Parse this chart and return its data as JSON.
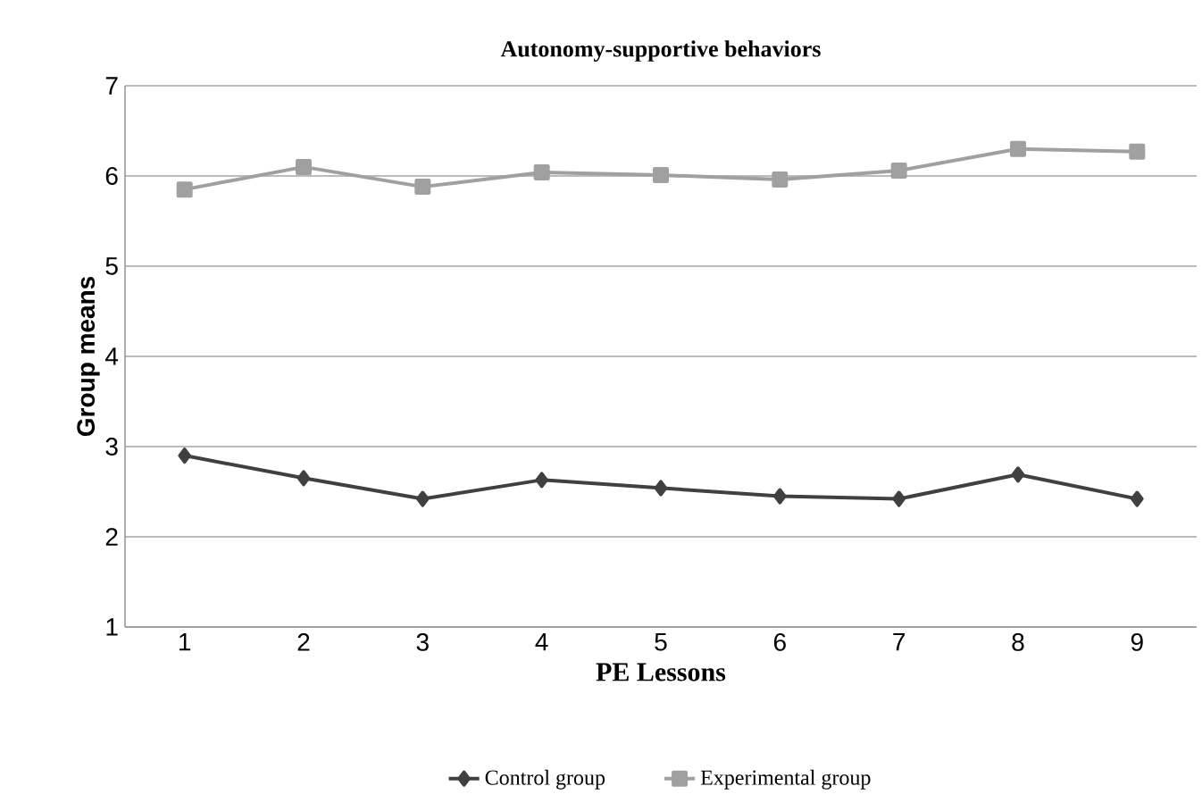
{
  "chart_data": {
    "type": "line",
    "title": "Autonomy-supportive behaviors",
    "xlabel": "PE Lessons",
    "ylabel": "Group means",
    "categories": [
      "1",
      "2",
      "3",
      "4",
      "5",
      "6",
      "7",
      "8",
      "9"
    ],
    "series": [
      {
        "name": "Control group",
        "color": "#404040",
        "marker": "diamond",
        "values": [
          2.9,
          2.65,
          2.42,
          2.63,
          2.54,
          2.45,
          2.42,
          2.69,
          2.42
        ]
      },
      {
        "name": "Experimental group",
        "color": "#a0a0a0",
        "marker": "square",
        "values": [
          5.85,
          6.1,
          5.88,
          6.04,
          6.01,
          5.96,
          6.06,
          6.3,
          6.27
        ]
      }
    ],
    "ylim": [
      1,
      7
    ],
    "yticks": [
      1,
      2,
      3,
      4,
      5,
      6,
      7
    ],
    "grid": "y",
    "legend": "bottom",
    "line_style": "solid"
  }
}
